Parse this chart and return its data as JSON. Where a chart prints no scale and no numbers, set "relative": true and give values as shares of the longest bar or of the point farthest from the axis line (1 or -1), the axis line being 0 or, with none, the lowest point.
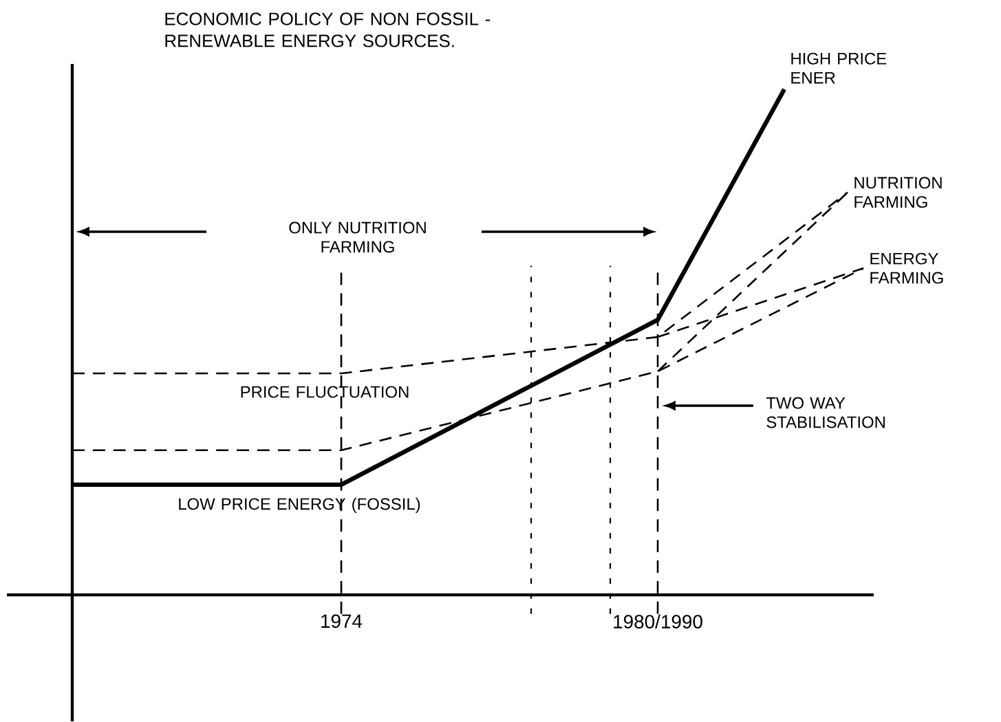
{
  "chart_data": {
    "type": "line",
    "relative": true,
    "title": "ECONOMIC POLICY OF NON FOSSIL - RENEWABLE ENERGY SOURCES.",
    "categories": [
      null,
      null,
      null,
      null,
      null,
      null,
      null,
      null,
      null,
      null,
      null,
      null,
      null,
      null,
      null,
      null,
      null,
      "1974",
      null,
      null,
      null,
      null,
      null,
      null,
      null,
      null,
      null,
      null,
      null,
      null,
      null,
      null,
      null,
      null,
      null,
      null,
      null,
      "1980/1990",
      null,
      null,
      null,
      null,
      null,
      null,
      null,
      null,
      null,
      null,
      null,
      null,
      null
    ],
    "series": [
      {
        "name": "HIGH PRICE ENER",
        "color": "#000000",
        "line_style": "solid",
        "values": [
          0.218,
          null,
          null,
          null,
          null,
          null,
          null,
          null,
          null,
          null,
          null,
          null,
          null,
          null,
          null,
          null,
          null,
          0.218,
          null,
          null,
          null,
          null,
          null,
          null,
          null,
          null,
          null,
          null,
          null,
          null,
          null,
          null,
          null,
          null,
          null,
          null,
          null,
          0.544,
          null,
          null,
          null,
          null,
          null,
          null,
          null,
          1,
          null,
          null,
          null,
          null,
          null
        ]
      },
      {
        "name": "NUTRITION FARMING",
        "color": "#000000",
        "line_style": "dashed",
        "values": [
          0.438,
          null,
          null,
          null,
          null,
          null,
          null,
          null,
          null,
          null,
          null,
          null,
          null,
          null,
          null,
          null,
          null,
          0.438,
          null,
          null,
          null,
          null,
          null,
          null,
          null,
          null,
          null,
          null,
          null,
          null,
          null,
          null,
          null,
          null,
          null,
          null,
          null,
          0.51,
          null,
          null,
          null,
          null,
          null,
          null,
          null,
          null,
          null,
          null,
          null,
          0.796,
          null
        ]
      },
      {
        "name": "ENERGY FARMING",
        "color": "#000000",
        "line_style": "dashed",
        "values": [
          0.286,
          null,
          null,
          null,
          null,
          null,
          null,
          null,
          null,
          null,
          null,
          null,
          null,
          null,
          null,
          null,
          null,
          0.286,
          null,
          null,
          null,
          null,
          null,
          null,
          null,
          null,
          null,
          null,
          null,
          null,
          null,
          null,
          null,
          null,
          null,
          null,
          null,
          0.442,
          null,
          null,
          null,
          null,
          null,
          null,
          null,
          null,
          null,
          null,
          null,
          null,
          0.646
        ]
      },
      {
        "color": "#000000",
        "line_style": "dashed",
        "values": [
          null,
          null,
          null,
          null,
          null,
          null,
          null,
          null,
          null,
          null,
          null,
          null,
          null,
          null,
          null,
          null,
          null,
          null,
          null,
          null,
          null,
          null,
          null,
          null,
          null,
          null,
          null,
          null,
          null,
          null,
          null,
          null,
          null,
          null,
          null,
          null,
          null,
          0.51,
          null,
          null,
          null,
          null,
          null,
          null,
          null,
          null,
          null,
          null,
          null,
          null,
          0.646
        ]
      },
      {
        "color": "#000000",
        "line_style": "dashed",
        "values": [
          null,
          null,
          null,
          null,
          null,
          null,
          null,
          null,
          null,
          null,
          null,
          null,
          null,
          null,
          null,
          null,
          null,
          null,
          null,
          null,
          null,
          null,
          null,
          null,
          null,
          null,
          null,
          null,
          null,
          null,
          null,
          null,
          null,
          null,
          null,
          null,
          null,
          0.442,
          null,
          null,
          null,
          null,
          null,
          null,
          null,
          null,
          null,
          null,
          null,
          0.796,
          null
        ]
      }
    ],
    "ref_lines": [
      {
        "axis": "x",
        "value": "1974",
        "line_style": "dashed"
      },
      {
        "axis": "x",
        "value": "1980/1990",
        "line_style": "dashed"
      }
    ],
    "annotations": [
      "ONLY NUTRITION FARMING",
      "PRICE FLUCTUATION",
      "LOW PRICE ENERGY (FOSSIL)",
      "TWO WAY STABILISATION"
    ]
  }
}
